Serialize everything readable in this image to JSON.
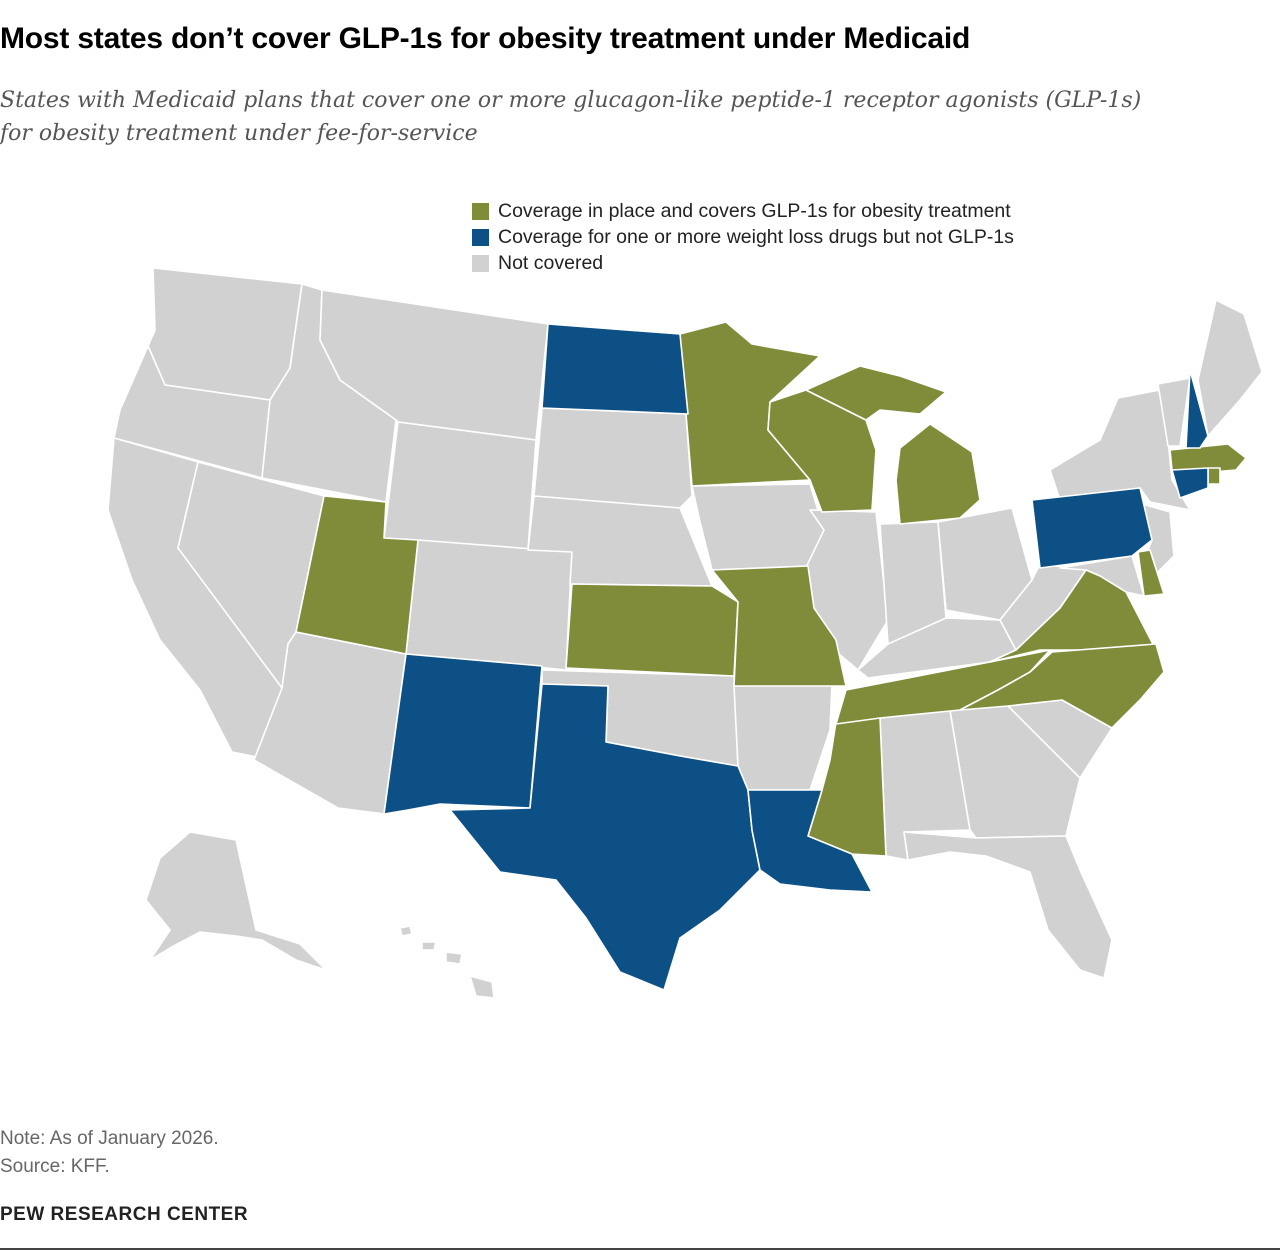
{
  "header": {
    "title": "Most states don’t cover GLP-1s for obesity treatment under Medicaid",
    "subtitle_line1": "States with Medicaid plans that cover one or more glucagon-like peptide-1 receptor agonists (GLP-1s)",
    "subtitle_line2": "for obesity treatment under fee-for-service"
  },
  "legend": {
    "items": [
      {
        "key": "covers_glp1",
        "label": "Coverage in place and covers GLP-1s for obesity treatment",
        "color": "#808c3a"
      },
      {
        "key": "weight_loss_not_glp1",
        "label": "Coverage for one or more weight loss drugs but not GLP-1s",
        "color": "#0c5086"
      },
      {
        "key": "not_covered",
        "label": "Not covered",
        "color": "#d1d1d1"
      }
    ]
  },
  "map_data": {
    "states_covers_glp1": [
      "Utah",
      "Kansas",
      "Missouri",
      "Minnesota",
      "Wisconsin",
      "Michigan",
      "Mississippi",
      "Tennessee",
      "Virginia",
      "North Carolina",
      "Delaware",
      "Massachusetts",
      "Rhode Island"
    ],
    "states_weight_loss_not_glp1": [
      "North Dakota",
      "New Mexico",
      "Texas",
      "Louisiana",
      "Pennsylvania",
      "New Hampshire",
      "Connecticut"
    ],
    "states_not_covered": "all other states"
  },
  "footer": {
    "note": "Note: As of January 2026.",
    "source": "Source: KFF.",
    "brand": "PEW RESEARCH CENTER"
  }
}
